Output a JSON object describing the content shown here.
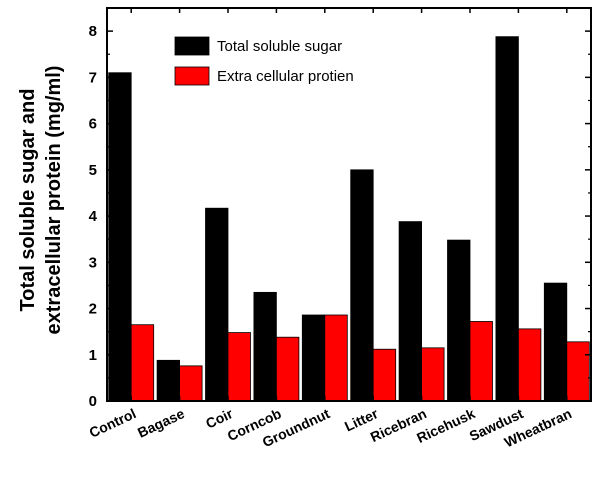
{
  "chart_data": {
    "type": "bar",
    "categories": [
      "Control",
      "Bagase",
      "Coir",
      "Corncob",
      "Groundnut",
      "Litter",
      "Ricebran",
      "Ricehusk",
      "Sawdust",
      "Wheatbran"
    ],
    "series": [
      {
        "name": "Total soluble sugar",
        "color": "#000000",
        "values": [
          7.1,
          0.88,
          4.17,
          2.35,
          1.86,
          5.0,
          3.88,
          3.48,
          7.88,
          2.55
        ]
      },
      {
        "name": "Extra cellular protien",
        "color": "#ff0000",
        "values": [
          1.65,
          0.76,
          1.48,
          1.38,
          1.86,
          1.12,
          1.15,
          1.72,
          1.56,
          1.28
        ]
      }
    ],
    "title": "",
    "xlabel": "",
    "ylabel_lines": [
      "Total soluble sugar and",
      "extracellular protein (mg/ml)"
    ],
    "ylim": [
      0,
      8.5
    ],
    "yticks": [
      "0",
      "1",
      "2",
      "3",
      "4",
      "5",
      "6",
      "7",
      "8"
    ],
    "legend_position": "top-center",
    "grid": false
  }
}
